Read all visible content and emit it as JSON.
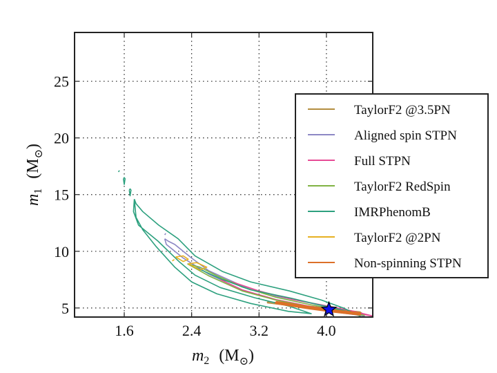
{
  "chart_data": {
    "type": "contour",
    "title": "",
    "xlabel": {
      "symbol": "m",
      "sub": "2",
      "unit": "(M",
      "unit_sub": "⊙",
      "close": ")"
    },
    "ylabel": {
      "symbol": "m",
      "sub": "1",
      "unit": "(M",
      "unit_sub": "⊙",
      "close": ")"
    },
    "xlim": [
      1.01,
      4.55
    ],
    "ylim": [
      4.2,
      29.3
    ],
    "xticks": [
      1.6,
      2.4,
      3.2,
      4.0
    ],
    "xtick_labels": [
      "1.6",
      "2.4",
      "3.2",
      "4.0"
    ],
    "yticks": [
      5,
      10,
      15,
      20,
      25
    ],
    "ytick_labels": [
      "5",
      "10",
      "15",
      "20",
      "25"
    ],
    "grid": true,
    "legend_position": "center-right",
    "injection_marker": {
      "x": 4.03,
      "y": 4.86,
      "color": "#1010ee",
      "shape": "star"
    },
    "series": [
      {
        "name": "TaylorF2 @3.5PN",
        "color": "#b38d3e",
        "contours": [
          [
            [
              3.3,
              5.55
            ],
            [
              3.7,
              5.25
            ],
            [
              4.05,
              4.95
            ],
            [
              4.4,
              4.65
            ],
            [
              4.42,
              4.55
            ],
            [
              4.05,
              4.8
            ],
            [
              3.7,
              5.1
            ],
            [
              3.3,
              5.45
            ],
            [
              3.3,
              5.55
            ]
          ]
        ]
      },
      {
        "name": "Aligned spin STPN",
        "color": "#8c87c4",
        "contours": [
          [
            [
              2.08,
              11.1
            ],
            [
              2.1,
              10.6
            ],
            [
              2.3,
              9.4
            ],
            [
              2.6,
              8.0
            ],
            [
              3.0,
              6.6
            ],
            [
              3.4,
              5.7
            ],
            [
              3.8,
              5.05
            ],
            [
              4.2,
              4.55
            ],
            [
              4.45,
              4.3
            ],
            [
              4.3,
              4.6
            ],
            [
              4.1,
              4.95
            ],
            [
              3.8,
              5.45
            ],
            [
              3.4,
              6.05
            ],
            [
              3.0,
              6.95
            ],
            [
              2.6,
              8.3
            ],
            [
              2.4,
              9.4
            ],
            [
              2.2,
              10.6
            ],
            [
              2.12,
              10.9
            ],
            [
              2.08,
              11.1
            ]
          ],
          [
            [
              2.08,
              11.45
            ],
            [
              2.09,
              11.55
            ],
            [
              2.08,
              11.45
            ]
          ]
        ]
      },
      {
        "name": "Full STPN",
        "color": "#e64a95",
        "contours": [
          [
            [
              2.74,
              7.5
            ],
            [
              3.0,
              6.6
            ],
            [
              3.4,
              5.75
            ],
            [
              3.8,
              5.15
            ],
            [
              4.2,
              4.7
            ],
            [
              4.55,
              4.3
            ],
            [
              4.3,
              4.75
            ],
            [
              4.0,
              5.2
            ],
            [
              3.6,
              5.75
            ],
            [
              3.2,
              6.5
            ],
            [
              2.9,
              7.25
            ],
            [
              2.74,
              7.5
            ]
          ]
        ]
      },
      {
        "name": "TaylorF2 RedSpin",
        "color": "#7fb242",
        "contours": [
          [
            [
              2.35,
              8.9
            ],
            [
              2.6,
              7.85
            ],
            [
              3.0,
              6.5
            ],
            [
              3.4,
              5.7
            ],
            [
              3.8,
              5.1
            ],
            [
              4.2,
              4.6
            ],
            [
              4.45,
              4.35
            ],
            [
              4.2,
              4.75
            ],
            [
              3.8,
              5.3
            ],
            [
              3.4,
              5.95
            ],
            [
              3.0,
              6.85
            ],
            [
              2.7,
              7.85
            ],
            [
              2.5,
              8.6
            ],
            [
              2.35,
              8.9
            ]
          ]
        ]
      },
      {
        "name": "IMRPhenomB",
        "color": "#2ca07e",
        "contours": [
          [
            [
              1.72,
              14.6
            ],
            [
              1.71,
              13.5
            ],
            [
              1.77,
              12.3
            ],
            [
              2.0,
              10.9
            ],
            [
              2.25,
              9.1
            ],
            [
              2.44,
              7.9
            ],
            [
              2.74,
              6.8
            ],
            [
              3.15,
              5.9
            ],
            [
              3.56,
              5.15
            ],
            [
              3.82,
              4.5
            ],
            [
              3.55,
              4.7
            ],
            [
              3.1,
              5.4
            ],
            [
              2.7,
              6.25
            ],
            [
              2.4,
              7.3
            ],
            [
              2.2,
              8.6
            ],
            [
              1.98,
              10.4
            ],
            [
              1.82,
              11.9
            ],
            [
              1.74,
              13.0
            ],
            [
              1.72,
              14.6
            ]
          ],
          [
            [
              1.72,
              14.6
            ],
            [
              1.74,
              14.2
            ],
            [
              1.82,
              13.5
            ],
            [
              2.01,
              12.3
            ],
            [
              2.24,
              11.1
            ],
            [
              2.44,
              9.6
            ],
            [
              2.77,
              8.2
            ],
            [
              3.1,
              7.3
            ],
            [
              3.56,
              6.5
            ],
            [
              3.94,
              5.7
            ],
            [
              4.2,
              5.0
            ],
            [
              4.4,
              4.3
            ],
            [
              4.2,
              4.8
            ],
            [
              3.9,
              5.3
            ],
            [
              3.56,
              5.9
            ],
            [
              3.1,
              6.6
            ],
            [
              2.77,
              7.5
            ],
            [
              2.44,
              8.6
            ]
          ],
          [
            [
              1.59,
              16.4
            ],
            [
              1.6,
              15.9
            ],
            [
              1.61,
              16.4
            ],
            [
              1.6,
              16.5
            ],
            [
              1.59,
              16.4
            ]
          ],
          [
            [
              1.66,
              15.4
            ],
            [
              1.67,
              14.9
            ],
            [
              1.68,
              15.4
            ],
            [
              1.67,
              15.5
            ],
            [
              1.66,
              15.4
            ]
          ],
          [
            [
              1.53,
              17.0
            ],
            [
              1.54,
              17.1
            ],
            [
              1.53,
              17.0
            ]
          ]
        ]
      },
      {
        "name": "TaylorF2 @2PN",
        "color": "#e6b020",
        "contours": [
          [
            [
              2.21,
              9.5
            ],
            [
              2.3,
              9.6
            ],
            [
              2.36,
              9.3
            ],
            [
              2.3,
              9.1
            ],
            [
              2.21,
              9.5
            ]
          ],
          [
            [
              2.36,
              8.9
            ],
            [
              2.46,
              9.0
            ],
            [
              2.58,
              8.6
            ],
            [
              2.5,
              8.35
            ],
            [
              2.36,
              8.9
            ]
          ],
          [
            [
              2.17,
              9.15
            ],
            [
              2.19,
              9.25
            ],
            [
              2.17,
              9.15
            ]
          ]
        ]
      },
      {
        "name": "Non-spinning STPN",
        "color": "#dc7028",
        "contours": [
          [
            [
              3.4,
              5.55
            ],
            [
              3.8,
              5.1
            ],
            [
              4.1,
              4.8
            ],
            [
              4.4,
              4.55
            ],
            [
              4.4,
              4.4
            ],
            [
              4.1,
              4.65
            ],
            [
              3.8,
              4.95
            ],
            [
              3.4,
              5.4
            ],
            [
              3.4,
              5.55
            ]
          ]
        ]
      }
    ]
  }
}
